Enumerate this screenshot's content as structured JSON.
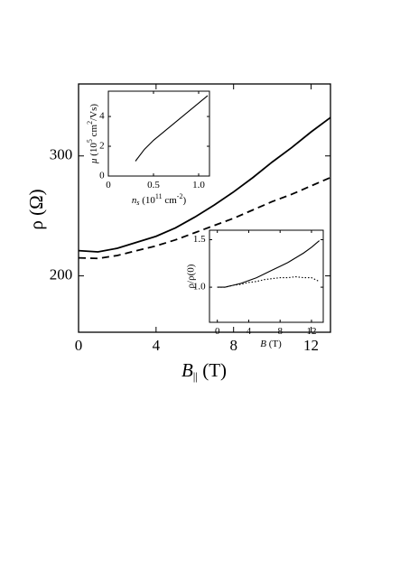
{
  "chart_data": [
    {
      "type": "line",
      "xlabel": [
        "B",
        "||",
        " (T)"
      ],
      "ylabel": "ρ (Ω)",
      "xlim": [
        0,
        13
      ],
      "ylim": [
        153,
        360
      ],
      "xticks": [
        0,
        4,
        8,
        12
      ],
      "yticks": [
        200,
        300
      ],
      "x": [
        0,
        1,
        2,
        3,
        4,
        5,
        6,
        7,
        8,
        9,
        10,
        11,
        12,
        13
      ],
      "series": [
        {
          "color": "#000000",
          "dash": "solid",
          "values": [
            221,
            220,
            223,
            228,
            233,
            240,
            249,
            259,
            270,
            282,
            295,
            307,
            320,
            332
          ]
        },
        {
          "color": "#000000",
          "dash": "dashed",
          "values": [
            215,
            214.5,
            217,
            221,
            225,
            230,
            236,
            242,
            248,
            255,
            262,
            268,
            275,
            282
          ]
        }
      ]
    },
    {
      "type": "line",
      "xlabel": [
        "n",
        "s",
        " (10",
        "11",
        " cm",
        "-2",
        ")"
      ],
      "ylabel": [
        "μ",
        " (10",
        "5",
        " cm",
        "2",
        "/Vs)"
      ],
      "xlim": [
        0,
        1.12
      ],
      "ylim": [
        0,
        5.7
      ],
      "xticks": [
        0,
        0.5,
        {
          "value": 1,
          "label": "1.0"
        }
      ],
      "yticks": [
        0,
        2,
        4
      ],
      "x": [
        0.3,
        0.4,
        0.5,
        0.6,
        0.7,
        0.8,
        0.9,
        1.0,
        1.1
      ],
      "series": [
        {
          "color": "#000000",
          "dash": "solid",
          "values": [
            1.0,
            1.8,
            2.4,
            2.9,
            3.4,
            3.9,
            4.4,
            4.9,
            5.4
          ]
        }
      ]
    },
    {
      "type": "line",
      "xlabel": [
        "B",
        " (T)"
      ],
      "ylabel": "ρ/ρ(0)",
      "xlim": [
        -1,
        13.5
      ],
      "ylim": [
        0.63,
        1.6
      ],
      "xticks": [
        0,
        4,
        8,
        12
      ],
      "yticks": [
        {
          "value": 1,
          "label": "1.0"
        },
        1.5
      ],
      "x": [
        0,
        1,
        2,
        3,
        4,
        5,
        6,
        7,
        8,
        9,
        10,
        11,
        12,
        13
      ],
      "series": [
        {
          "color": "#000000",
          "dash": "solid",
          "values": [
            1.0,
            1.0,
            1.02,
            1.04,
            1.07,
            1.1,
            1.14,
            1.18,
            1.22,
            1.26,
            1.31,
            1.36,
            1.42,
            1.49
          ]
        },
        {
          "color": "#000000",
          "dash": "dotted",
          "values": [
            1.0,
            1.0,
            1.02,
            1.03,
            1.05,
            1.06,
            1.08,
            1.09,
            1.1,
            1.1,
            1.11,
            1.1,
            1.1,
            1.06
          ]
        }
      ]
    }
  ]
}
